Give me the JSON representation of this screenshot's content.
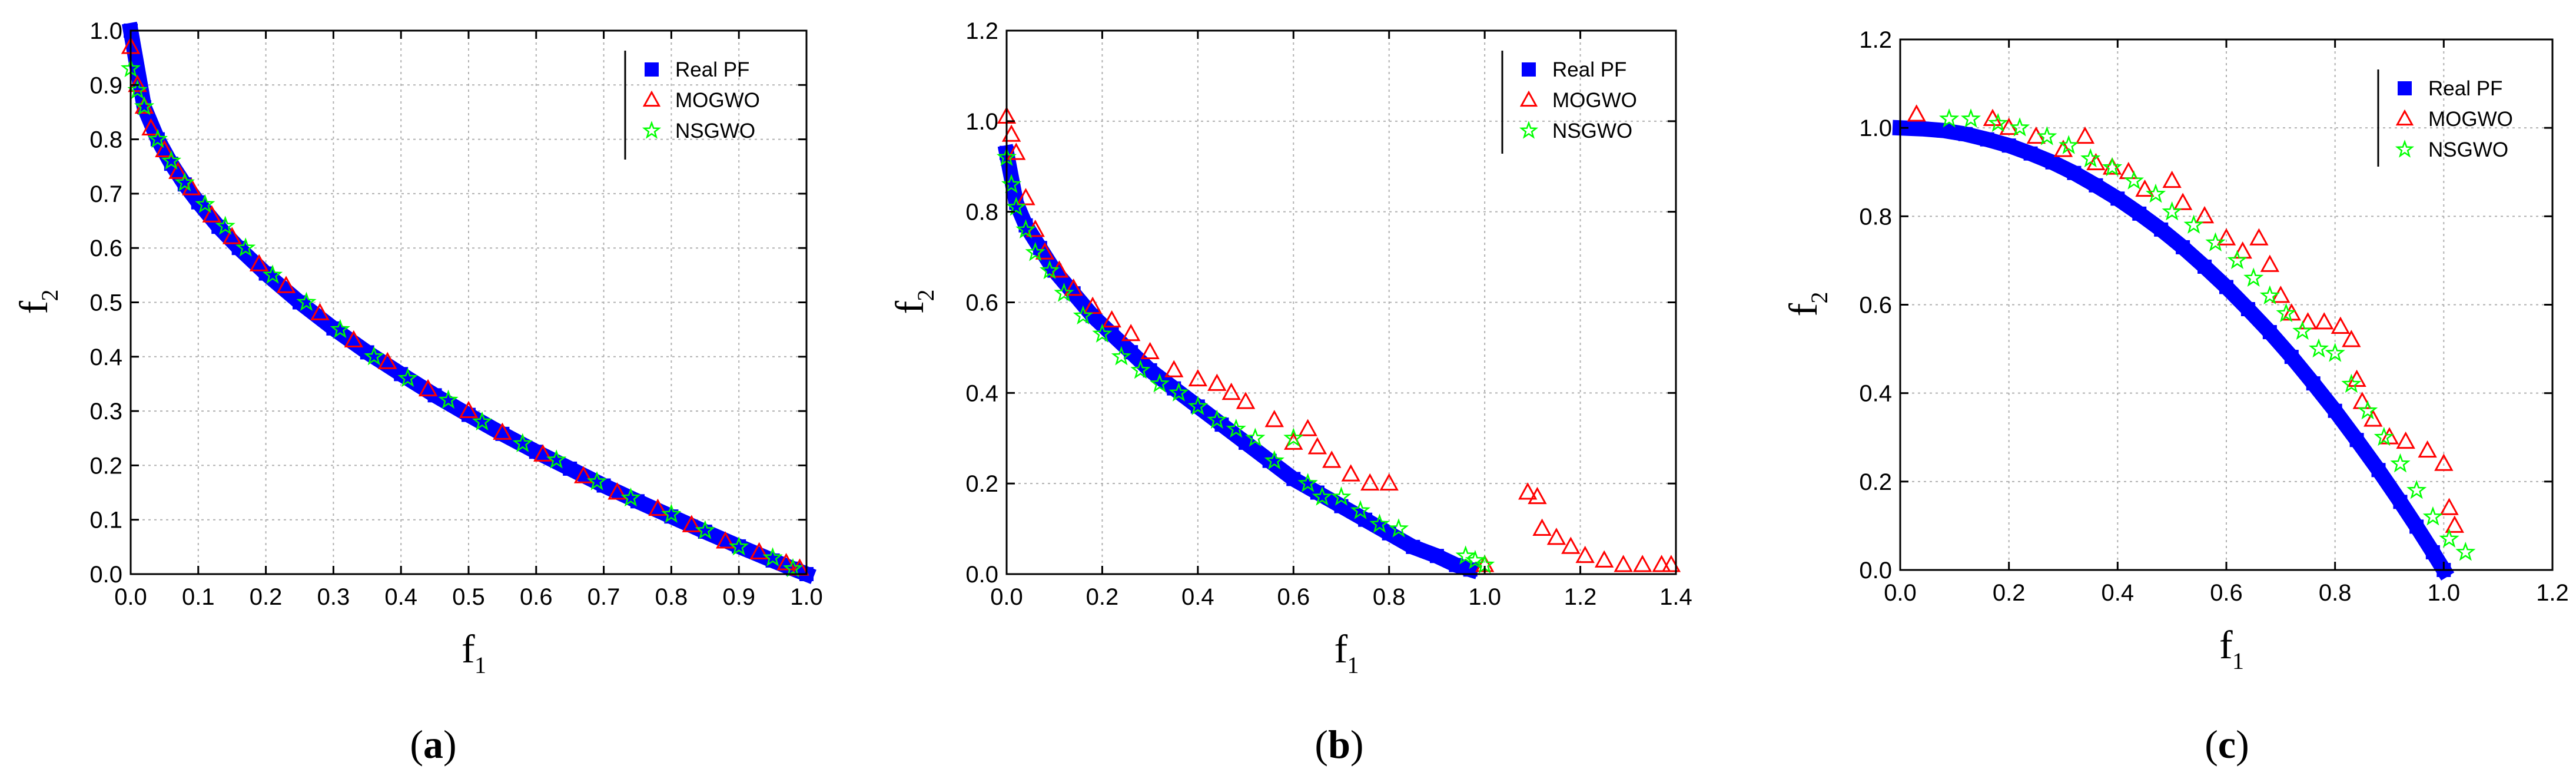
{
  "colors": {
    "real": "#0000ff",
    "mogwo": "#ff0000",
    "nsgwo": "#00ff00",
    "grid": "#b0b0b0"
  },
  "chart_data": [
    {
      "type": "scatter",
      "caption": "a",
      "xlabel": "f",
      "xlabel_sub": "1",
      "ylabel": "f",
      "ylabel_sub": "2",
      "xlim": [
        0,
        1.0
      ],
      "ylim": [
        0,
        1.0
      ],
      "xticks": [
        "0.0",
        "0.1",
        "0.2",
        "0.3",
        "0.4",
        "0.5",
        "0.6",
        "0.7",
        "0.8",
        "0.9",
        "1.0"
      ],
      "yticks": [
        "0.0",
        "0.1",
        "0.2",
        "0.3",
        "0.4",
        "0.5",
        "0.6",
        "0.7",
        "0.8",
        "0.9",
        "1.0"
      ],
      "legend": [
        "Real PF",
        "MOGWO",
        "NSGWO"
      ],
      "legend_position": "top-right",
      "series": [
        {
          "name": "Real PF",
          "x": [
            0.0,
            0.02,
            0.04,
            0.06,
            0.08,
            0.1,
            0.13,
            0.16,
            0.2,
            0.25,
            0.3,
            0.35,
            0.4,
            0.45,
            0.5,
            0.55,
            0.6,
            0.65,
            0.7,
            0.75,
            0.8,
            0.85,
            0.9,
            0.95,
            0.98,
            1.0
          ],
          "y": [
            1.0,
            0.859,
            0.8,
            0.755,
            0.717,
            0.684,
            0.639,
            0.6,
            0.553,
            0.5,
            0.452,
            0.408,
            0.368,
            0.329,
            0.293,
            0.258,
            0.225,
            0.194,
            0.163,
            0.134,
            0.106,
            0.078,
            0.051,
            0.025,
            0.01,
            0.0
          ]
        },
        {
          "name": "MOGWO",
          "x": [
            0.0,
            0.01,
            0.02,
            0.03,
            0.05,
            0.07,
            0.09,
            0.12,
            0.15,
            0.19,
            0.23,
            0.28,
            0.33,
            0.38,
            0.44,
            0.5,
            0.55,
            0.61,
            0.67,
            0.72,
            0.78,
            0.83,
            0.88,
            0.93,
            0.97,
            0.99
          ],
          "y": [
            0.97,
            0.9,
            0.86,
            0.82,
            0.78,
            0.74,
            0.71,
            0.66,
            0.62,
            0.57,
            0.53,
            0.48,
            0.43,
            0.39,
            0.34,
            0.3,
            0.26,
            0.22,
            0.18,
            0.15,
            0.12,
            0.09,
            0.06,
            0.04,
            0.02,
            0.01
          ]
        },
        {
          "name": "NSGWO",
          "x": [
            0.0,
            0.01,
            0.02,
            0.04,
            0.06,
            0.08,
            0.11,
            0.14,
            0.17,
            0.21,
            0.26,
            0.31,
            0.36,
            0.41,
            0.47,
            0.52,
            0.58,
            0.63,
            0.69,
            0.74,
            0.8,
            0.85,
            0.9,
            0.95,
            0.98
          ],
          "y": [
            0.93,
            0.89,
            0.86,
            0.8,
            0.76,
            0.72,
            0.68,
            0.64,
            0.6,
            0.55,
            0.5,
            0.45,
            0.4,
            0.36,
            0.32,
            0.28,
            0.24,
            0.21,
            0.17,
            0.14,
            0.11,
            0.08,
            0.05,
            0.03,
            0.01
          ]
        }
      ]
    },
    {
      "type": "scatter",
      "caption": "b",
      "xlabel": "f",
      "xlabel_sub": "1",
      "ylabel": "f",
      "ylabel_sub": "2",
      "xlim": [
        0,
        1.4
      ],
      "ylim": [
        0,
        1.2
      ],
      "xticks": [
        "0.0",
        "0.2",
        "0.4",
        "0.6",
        "0.8",
        "1.0",
        "1.2",
        "1.4"
      ],
      "yticks": [
        "0.0",
        "0.2",
        "0.4",
        "0.6",
        "0.8",
        "1.0",
        "1.2"
      ],
      "legend": [
        "Real PF",
        "MOGWO",
        "NSGWO"
      ],
      "legend_position": "top-right",
      "series": [
        {
          "name": "Real PF",
          "x": [
            0.0,
            0.02,
            0.04,
            0.07,
            0.1,
            0.14,
            0.18,
            0.22,
            0.26,
            0.3,
            0.35,
            0.4,
            0.45,
            0.5,
            0.55,
            0.6,
            0.65,
            0.7,
            0.75,
            0.8,
            0.85,
            0.9,
            0.94,
            0.97
          ],
          "y": [
            0.93,
            0.82,
            0.77,
            0.72,
            0.67,
            0.62,
            0.57,
            0.53,
            0.49,
            0.45,
            0.41,
            0.37,
            0.33,
            0.29,
            0.25,
            0.21,
            0.18,
            0.15,
            0.12,
            0.09,
            0.06,
            0.04,
            0.02,
            0.01
          ]
        },
        {
          "name": "MOGWO",
          "x": [
            0.0,
            0.01,
            0.02,
            0.04,
            0.06,
            0.08,
            0.11,
            0.14,
            0.18,
            0.22,
            0.26,
            0.3,
            0.35,
            0.4,
            0.44,
            0.47,
            0.5,
            0.56,
            0.6,
            0.63,
            0.65,
            0.68,
            0.72,
            0.76,
            0.8,
            1.0,
            1.09,
            1.11,
            1.12,
            1.15,
            1.18,
            1.21,
            1.25,
            1.29,
            1.33,
            1.37,
            1.39
          ],
          "y": [
            1.01,
            0.97,
            0.93,
            0.83,
            0.76,
            0.71,
            0.67,
            0.63,
            0.59,
            0.56,
            0.53,
            0.49,
            0.45,
            0.43,
            0.42,
            0.4,
            0.38,
            0.34,
            0.29,
            0.32,
            0.28,
            0.25,
            0.22,
            0.2,
            0.2,
            0.02,
            0.18,
            0.17,
            0.1,
            0.08,
            0.06,
            0.04,
            0.03,
            0.02,
            0.02,
            0.02,
            0.02
          ]
        },
        {
          "name": "NSGWO",
          "x": [
            0.0,
            0.01,
            0.02,
            0.04,
            0.06,
            0.09,
            0.12,
            0.16,
            0.2,
            0.24,
            0.28,
            0.32,
            0.36,
            0.4,
            0.44,
            0.48,
            0.52,
            0.56,
            0.6,
            0.63,
            0.66,
            0.7,
            0.74,
            0.78,
            0.82,
            0.96,
            0.98,
            1.0
          ],
          "y": [
            0.92,
            0.86,
            0.81,
            0.76,
            0.71,
            0.67,
            0.62,
            0.57,
            0.53,
            0.48,
            0.45,
            0.42,
            0.4,
            0.37,
            0.34,
            0.32,
            0.3,
            0.25,
            0.3,
            0.2,
            0.17,
            0.17,
            0.14,
            0.11,
            0.1,
            0.04,
            0.03,
            0.02
          ]
        }
      ]
    },
    {
      "type": "scatter",
      "caption": "c",
      "xlabel": "f",
      "xlabel_sub": "1",
      "ylabel": "f",
      "ylabel_sub": "2",
      "xlim": [
        0,
        1.2
      ],
      "ylim": [
        0,
        1.2
      ],
      "xticks": [
        "0.0",
        "0.2",
        "0.4",
        "0.6",
        "0.8",
        "1.0",
        "1.2"
      ],
      "yticks": [
        "0.0",
        "0.2",
        "0.4",
        "0.6",
        "0.8",
        "1.0",
        "1.2"
      ],
      "legend": [
        "Real PF",
        "MOGWO",
        "NSGWO"
      ],
      "legend_position": "top-right",
      "series": [
        {
          "name": "Real PF",
          "x": [
            0.0,
            0.04,
            0.08,
            0.12,
            0.16,
            0.2,
            0.24,
            0.28,
            0.32,
            0.36,
            0.4,
            0.44,
            0.48,
            0.52,
            0.56,
            0.6,
            0.64,
            0.68,
            0.72,
            0.76,
            0.8,
            0.84,
            0.88,
            0.92,
            0.95,
            0.98,
            1.0
          ],
          "y": [
            1.0,
            0.998,
            0.994,
            0.986,
            0.974,
            0.96,
            0.942,
            0.922,
            0.898,
            0.87,
            0.84,
            0.806,
            0.77,
            0.73,
            0.686,
            0.64,
            0.59,
            0.538,
            0.482,
            0.422,
            0.36,
            0.294,
            0.226,
            0.154,
            0.098,
            0.04,
            0.0
          ]
        },
        {
          "name": "MOGWO",
          "x": [
            0.03,
            0.17,
            0.2,
            0.25,
            0.3,
            0.34,
            0.36,
            0.39,
            0.42,
            0.45,
            0.5,
            0.52,
            0.56,
            0.6,
            0.63,
            0.66,
            0.68,
            0.7,
            0.72,
            0.75,
            0.78,
            0.81,
            0.83,
            0.84,
            0.85,
            0.87,
            0.9,
            0.93,
            0.97,
            1.0,
            1.01,
            1.02
          ],
          "y": [
            1.03,
            1.02,
            1.0,
            0.98,
            0.95,
            0.98,
            0.92,
            0.91,
            0.9,
            0.86,
            0.88,
            0.83,
            0.8,
            0.75,
            0.72,
            0.75,
            0.69,
            0.62,
            0.58,
            0.56,
            0.56,
            0.55,
            0.52,
            0.43,
            0.38,
            0.34,
            0.3,
            0.29,
            0.27,
            0.24,
            0.14,
            0.1
          ]
        },
        {
          "name": "NSGWO",
          "x": [
            0.09,
            0.13,
            0.18,
            0.22,
            0.27,
            0.31,
            0.35,
            0.39,
            0.43,
            0.47,
            0.5,
            0.54,
            0.58,
            0.62,
            0.65,
            0.68,
            0.71,
            0.74,
            0.77,
            0.8,
            0.83,
            0.86,
            0.89,
            0.92,
            0.95,
            0.98,
            1.01,
            1.04
          ],
          "y": [
            1.02,
            1.02,
            1.01,
            1.0,
            0.98,
            0.96,
            0.93,
            0.91,
            0.88,
            0.85,
            0.81,
            0.78,
            0.74,
            0.7,
            0.66,
            0.62,
            0.58,
            0.54,
            0.5,
            0.49,
            0.42,
            0.36,
            0.3,
            0.24,
            0.18,
            0.12,
            0.07,
            0.04
          ]
        }
      ]
    }
  ]
}
